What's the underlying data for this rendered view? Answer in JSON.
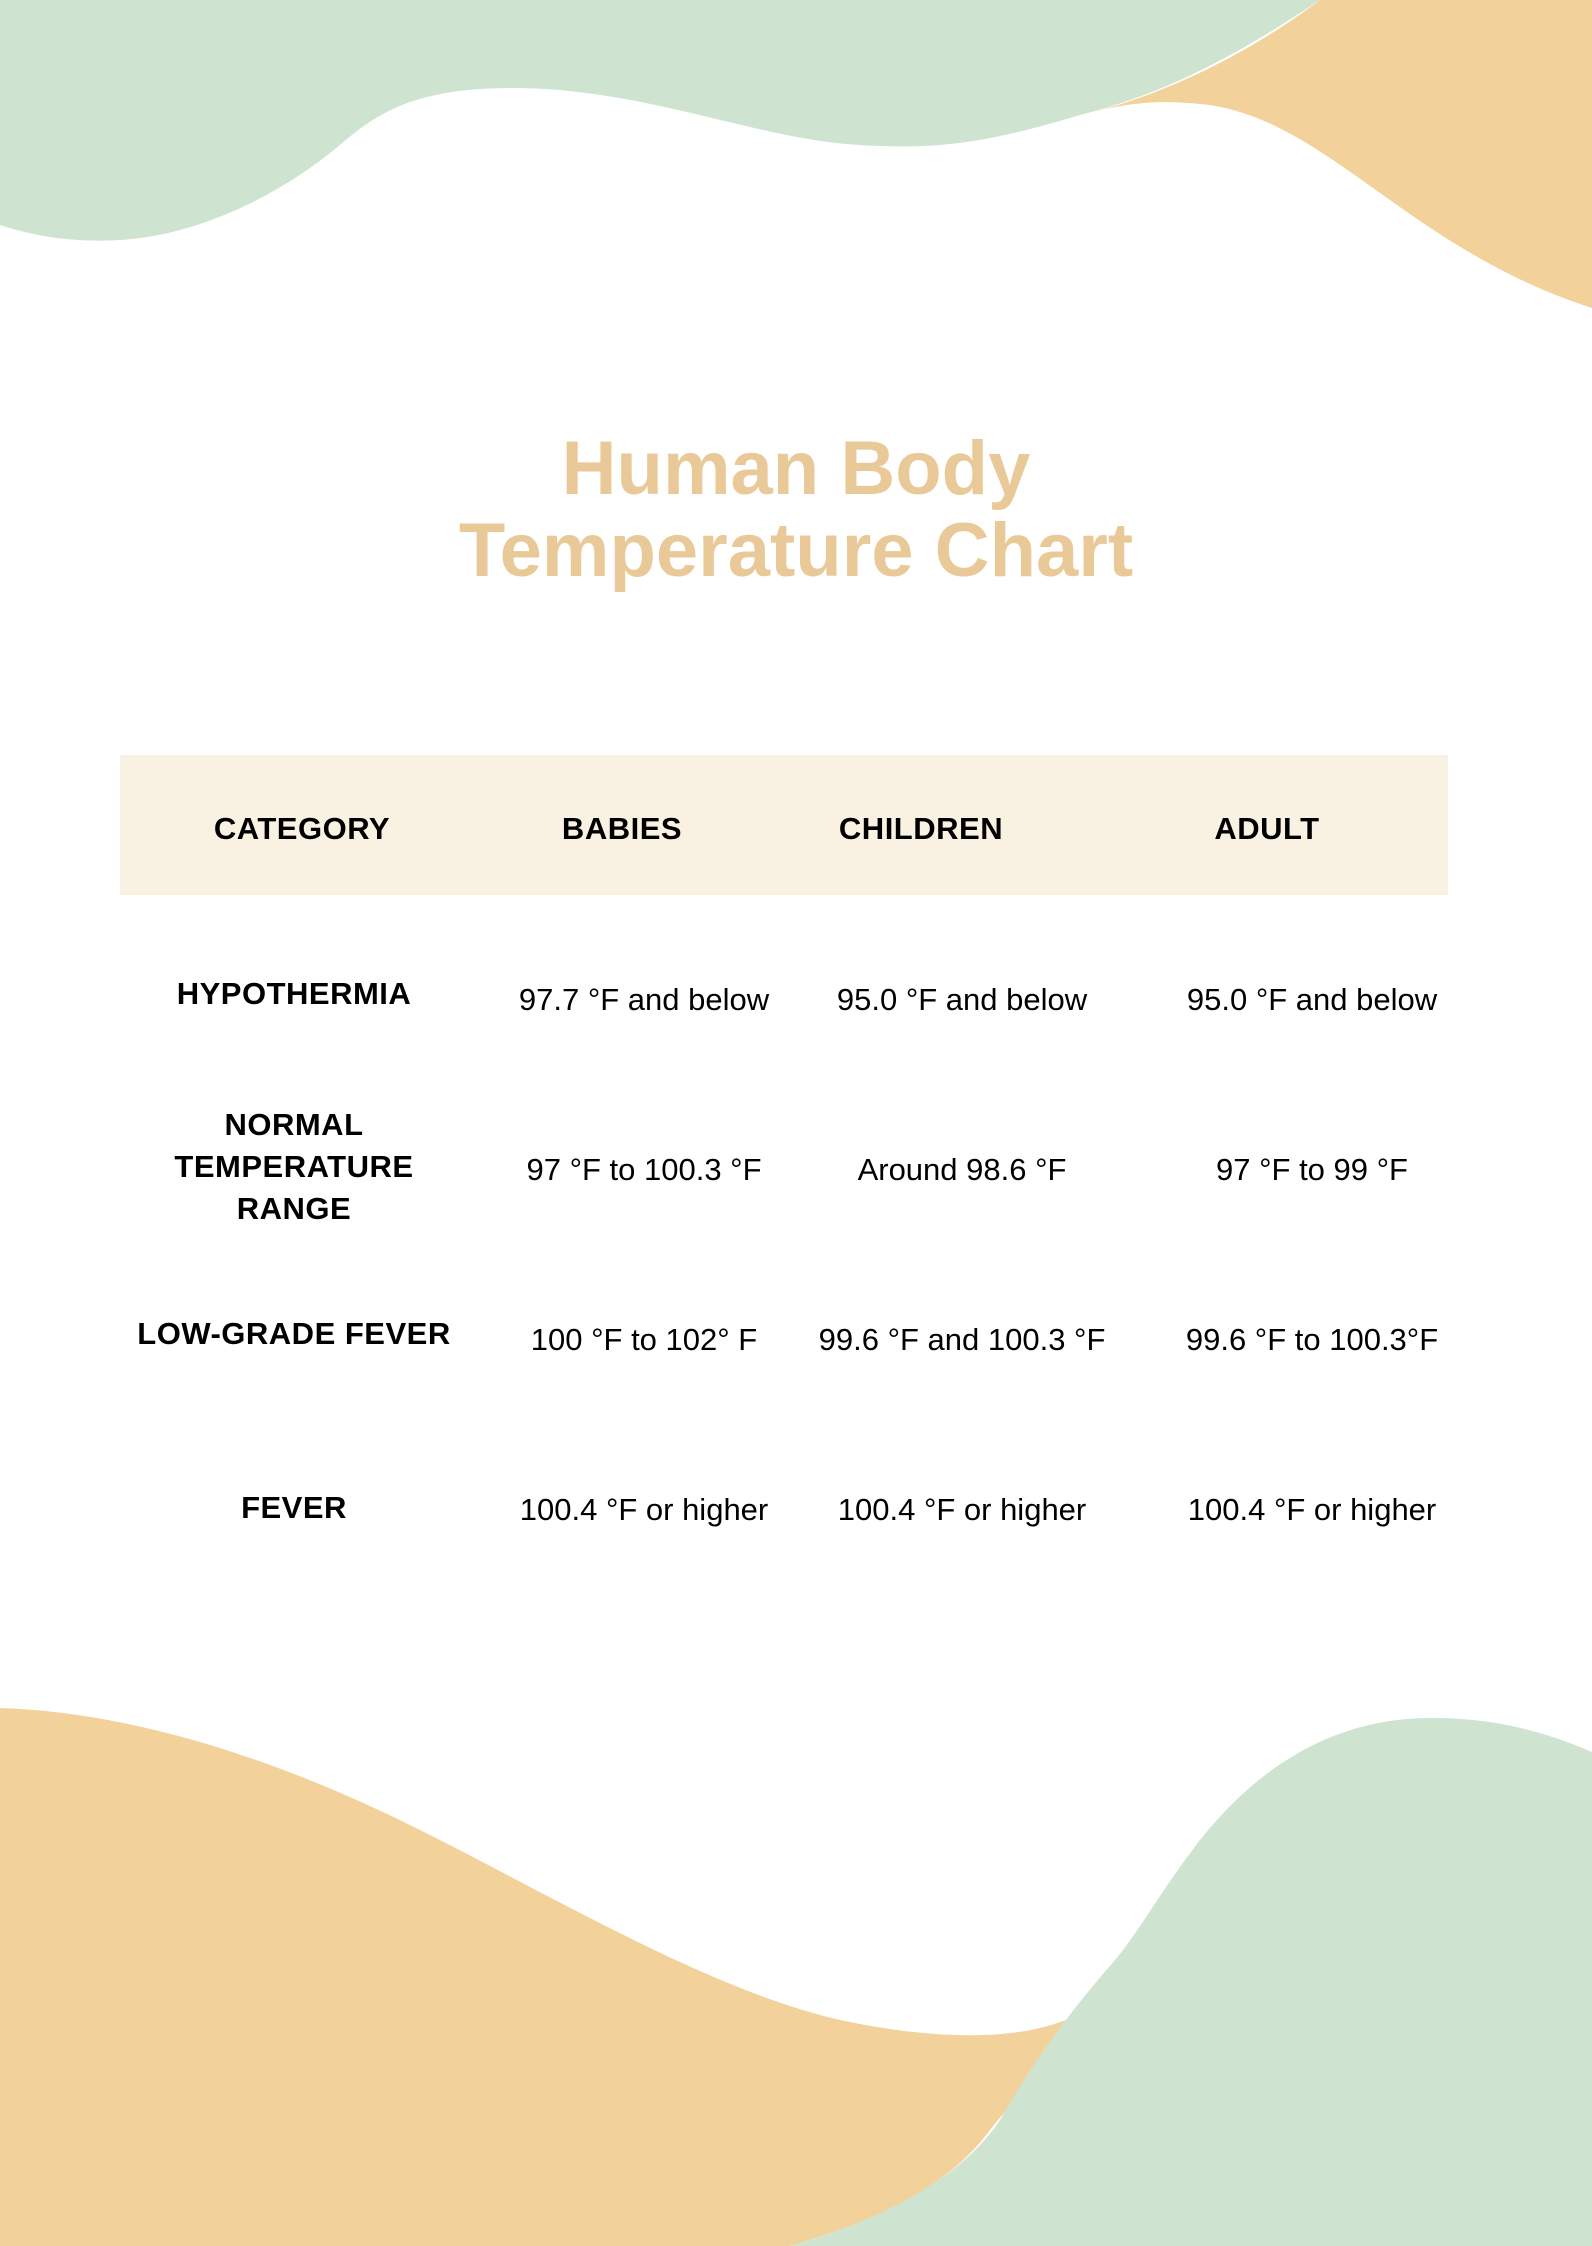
{
  "title": {
    "line1": "Human Body",
    "line2": "Temperature Chart"
  },
  "colors": {
    "title": "#e9c998",
    "green_wave": "#cfe4d0",
    "orange_wave": "#f3d19b",
    "header_band": "#f9f2e2"
  },
  "table": {
    "headers": [
      "CATEGORY",
      "BABIES",
      "CHILDREN",
      "ADULT"
    ],
    "rows": [
      {
        "category": [
          "HYPOTHERMIA"
        ],
        "babies": "97.7 °F and below",
        "children": "95.0 °F and below",
        "adult": "95.0 °F and below"
      },
      {
        "category": [
          "NORMAL",
          "TEMPERATURE",
          "RANGE"
        ],
        "babies": "97 °F to 100.3 °F",
        "children": "Around 98.6 °F",
        "adult": "97 °F to 99 °F"
      },
      {
        "category": [
          "LOW-GRADE FEVER"
        ],
        "babies": "100 °F to 102° F",
        "children": "99.6 °F and 100.3 °F",
        "adult": "99.6 °F to 100.3°F"
      },
      {
        "category": [
          "FEVER"
        ],
        "babies": "100.4 °F or higher",
        "children": "100.4 °F or higher",
        "adult": "100.4 °F or higher"
      }
    ]
  }
}
